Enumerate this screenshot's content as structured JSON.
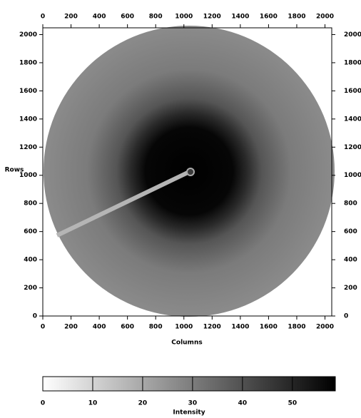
{
  "chart_data": {
    "type": "image",
    "xlabel": "Columns",
    "ylabel": "Rows",
    "xlim": [
      0,
      2048
    ],
    "ylim": [
      0,
      2048
    ],
    "xticks": [
      0,
      200,
      400,
      600,
      800,
      1000,
      1200,
      1400,
      1600,
      1800,
      2000
    ],
    "yticks": [
      0,
      200,
      400,
      600,
      800,
      1000,
      1200,
      1400,
      1600,
      1800,
      2000
    ],
    "colorbar": {
      "label": "Intensity",
      "lim": [
        0,
        58.6
      ],
      "ticks": [
        0,
        10,
        20,
        30,
        40,
        50
      ]
    }
  }
}
